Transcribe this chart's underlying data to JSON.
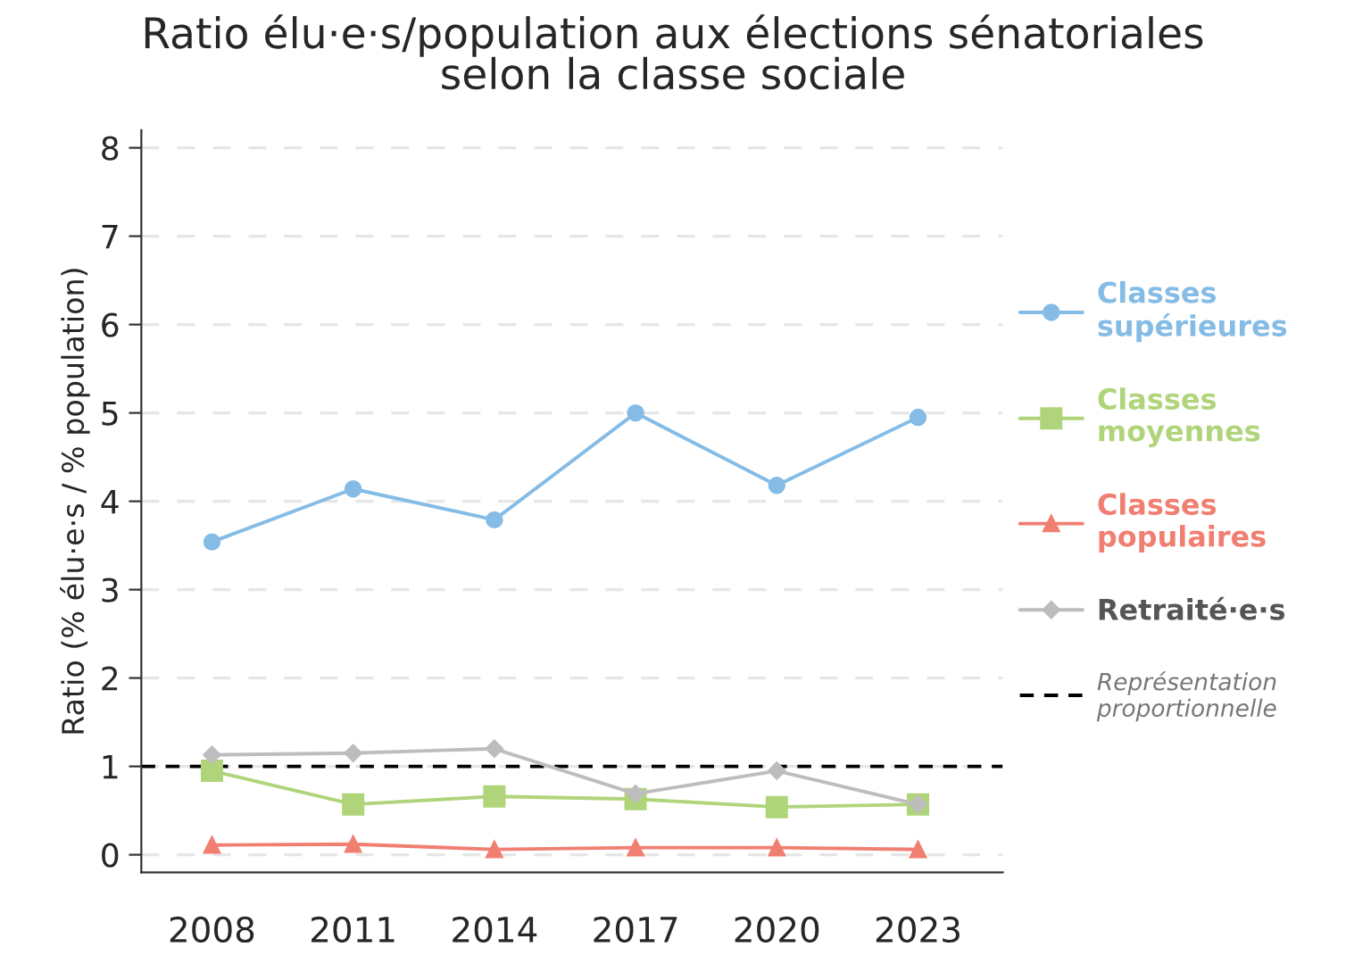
{
  "chart_data": {
    "type": "line",
    "title": "Ratio élu·e·s/population aux élections sénatoriales\nselon la classe sociale",
    "ylabel": "Ratio (% élu·e·s / % population)",
    "categories": [
      "2008",
      "2011",
      "2014",
      "2017",
      "2020",
      "2023"
    ],
    "series": [
      {
        "name": "Classes\nsupérieures",
        "color": "#85bce6",
        "marker": "circle",
        "values": [
          3.54,
          4.14,
          3.79,
          5.0,
          4.18,
          4.95
        ]
      },
      {
        "name": "Classes\nmoyennes",
        "color": "#b0d47a",
        "marker": "square",
        "values": [
          0.95,
          0.57,
          0.66,
          0.63,
          0.54,
          0.57
        ]
      },
      {
        "name": "Classes\npopulaires",
        "color": "#f07f72",
        "marker": "triangle",
        "values": [
          0.11,
          0.12,
          0.06,
          0.08,
          0.08,
          0.06
        ]
      },
      {
        "name": "Retraité·e·s",
        "color": "#bdbdbd",
        "marker": "diamond",
        "values": [
          1.13,
          1.15,
          1.2,
          0.69,
          0.95,
          0.57
        ]
      }
    ],
    "ylim": [
      -0.2,
      8.2
    ],
    "yticks": [
      0,
      1,
      2,
      3,
      4,
      5,
      6,
      7,
      8
    ],
    "grid": "y",
    "legend": "right",
    "ref_lines": [
      {
        "axis": "y",
        "value": 1,
        "label": "Représentation\nproportionnelle",
        "color": "#000000",
        "line_style": "dashed"
      }
    ]
  }
}
